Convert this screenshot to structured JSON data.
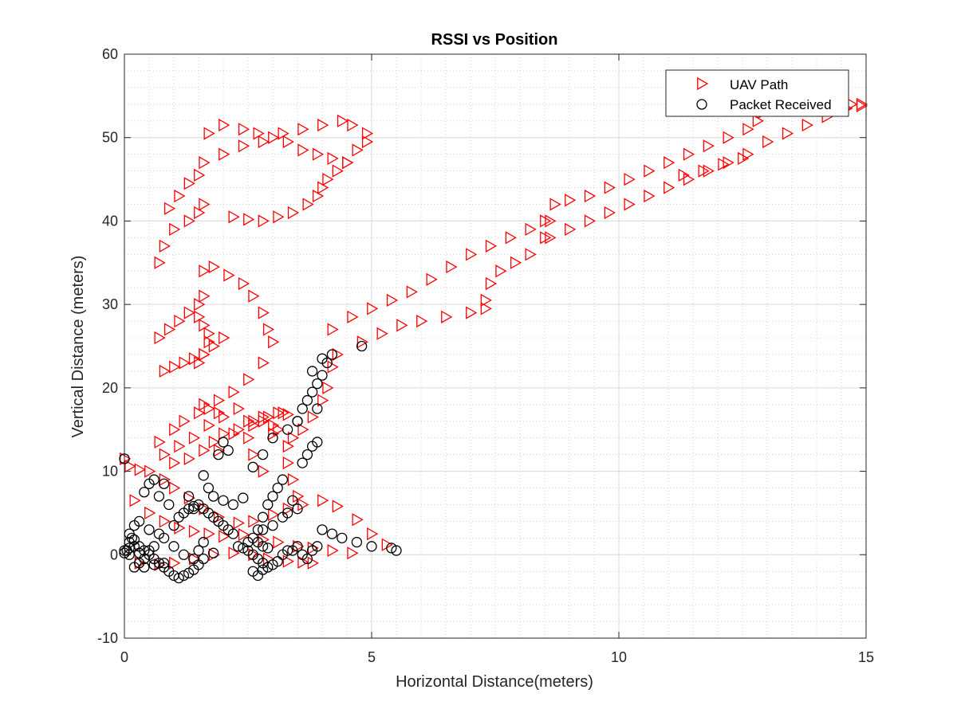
{
  "chart_data": {
    "type": "scatter",
    "title": "RSSI vs Position",
    "xlabel": "Horizontal Distance(meters)",
    "ylabel": "Vertical Distance (meters)",
    "xlim": [
      0,
      15
    ],
    "ylim": [
      -10,
      60
    ],
    "xticks": [
      0,
      5,
      10,
      15
    ],
    "yticks": [
      -10,
      0,
      10,
      20,
      30,
      40,
      50,
      60
    ],
    "xtick_labels": [
      "0",
      "5",
      "10",
      "15"
    ],
    "ytick_labels": [
      "-10",
      "0",
      "10",
      "20",
      "30",
      "40",
      "50",
      "60"
    ],
    "grid": true,
    "minor_grid": true,
    "legend_position": "top-right",
    "series": [
      {
        "name": "UAV Path",
        "marker": "triangle-right",
        "color": "#ff0000",
        "x": [
          0.0,
          0.1,
          0.3,
          0.5,
          0.8,
          1.0,
          1.3,
          1.6,
          1.9,
          2.3,
          2.6,
          3.0,
          3.3,
          3.6,
          4.0,
          4.3,
          4.7,
          5.0,
          5.3,
          0.2,
          0.5,
          0.8,
          1.1,
          1.4,
          1.7,
          2.0,
          2.4,
          2.8,
          3.1,
          3.5,
          3.8,
          4.2,
          4.6,
          0.3,
          0.7,
          1.0,
          1.4,
          1.8,
          2.2,
          2.6,
          2.9,
          3.3,
          3.6,
          3.8,
          3.5,
          3.4,
          3.3,
          3.3,
          3.4,
          3.6,
          3.8,
          4.0,
          4.1,
          4.2,
          4.3,
          2.8,
          2.6,
          2.5,
          2.6,
          2.8,
          3.0,
          3.1,
          3.0,
          1.9,
          2.2,
          2.5,
          2.8,
          3.1,
          3.3,
          0.7,
          1.0,
          1.2,
          1.5,
          1.7,
          1.9,
          1.0,
          1.3,
          1.6,
          1.8,
          2.0,
          2.3,
          2.6,
          2.9,
          3.2,
          0.8,
          1.1,
          1.4,
          1.7,
          2.0,
          2.3,
          1.6,
          1.9,
          2.2,
          2.5,
          2.8,
          3.0,
          2.9,
          2.8,
          2.6,
          2.4,
          2.1,
          1.8,
          1.6,
          1.5,
          1.6,
          1.7,
          1.7,
          1.6,
          1.5,
          0.8,
          1.0,
          1.2,
          1.4,
          1.6,
          1.8,
          2.0,
          0.7,
          0.9,
          1.1,
          1.3,
          1.5,
          1.6,
          0.7,
          0.8,
          1.0,
          1.3,
          1.5,
          1.6,
          0.9,
          1.1,
          1.3,
          1.5,
          1.6,
          2.0,
          2.4,
          2.8,
          3.2,
          3.6,
          4.0,
          4.4,
          4.6,
          4.9,
          4.9,
          4.7,
          4.5,
          4.3,
          4.1,
          4.0,
          3.9,
          3.7,
          3.4,
          3.1,
          2.8,
          2.5,
          2.2,
          4.5,
          4.2,
          3.9,
          3.6,
          3.3,
          3.0,
          2.7,
          2.4,
          2.0,
          1.7,
          4.2,
          4.6,
          5.0,
          5.4,
          5.8,
          6.2,
          6.6,
          7.0,
          7.4,
          7.8,
          8.2,
          8.5,
          4.8,
          5.2,
          5.6,
          6.0,
          6.5,
          7.0,
          7.3,
          7.3,
          7.4,
          7.6,
          7.9,
          8.2,
          8.5,
          8.6,
          8.7,
          9.0,
          9.4,
          9.8,
          10.2,
          10.6,
          11.0,
          11.4,
          11.8,
          12.2,
          12.6,
          8.6,
          9.0,
          9.4,
          9.8,
          10.2,
          10.6,
          11.0,
          11.4,
          11.8,
          12.2,
          12.6,
          13.0,
          13.4,
          13.8,
          14.2,
          14.6,
          14.9,
          12.8,
          12.9,
          13.2,
          13.5,
          13.8,
          14.1,
          14.4,
          14.7,
          14.9,
          11.3,
          11.7,
          12.1,
          12.5
        ],
        "y": [
          11.5,
          10.6,
          10.2,
          10.0,
          9.0,
          8.0,
          6.8,
          5.5,
          4.5,
          3.8,
          4.0,
          4.8,
          5.5,
          6.0,
          6.5,
          5.8,
          4.2,
          2.5,
          1.2,
          6.5,
          5.0,
          4.0,
          3.2,
          2.8,
          2.5,
          2.2,
          2.4,
          1.8,
          1.5,
          1.0,
          0.8,
          0.5,
          0.2,
          -1.0,
          -1.2,
          -1.0,
          -0.5,
          0.0,
          0.2,
          0.0,
          -0.5,
          -0.8,
          -0.9,
          -1.0,
          7.0,
          9.0,
          11.0,
          13.0,
          14.0,
          15.0,
          16.5,
          18.5,
          20.0,
          22.5,
          24.0,
          10.0,
          12.0,
          14.0,
          15.5,
          16.0,
          15.5,
          15.0,
          14.5,
          12.5,
          14.5,
          16.0,
          16.5,
          17.0,
          16.8,
          13.5,
          15.0,
          16.0,
          17.0,
          17.5,
          17.0,
          11.0,
          11.5,
          12.5,
          13.5,
          14.5,
          15.0,
          16.0,
          16.5,
          17.0,
          12.0,
          13.0,
          14.0,
          15.5,
          16.5,
          17.5,
          18.0,
          18.5,
          19.5,
          21.0,
          23.0,
          25.5,
          27.0,
          29.0,
          31.0,
          32.5,
          33.5,
          34.5,
          34.0,
          23.0,
          24.0,
          25.5,
          26.5,
          27.5,
          28.5,
          22.0,
          22.5,
          23.0,
          23.5,
          24.0,
          25.0,
          26.0,
          26.0,
          27.0,
          28.0,
          29.0,
          30.0,
          31.0,
          35.0,
          37.0,
          39.0,
          40.0,
          41.0,
          42.0,
          41.5,
          43.0,
          44.5,
          45.5,
          47.0,
          48.0,
          49.0,
          49.5,
          50.5,
          51.0,
          51.5,
          52.0,
          51.5,
          50.5,
          49.5,
          48.5,
          47.0,
          46.0,
          45.0,
          44.0,
          43.0,
          42.0,
          41.0,
          40.5,
          40.0,
          40.2,
          40.5,
          47.0,
          47.5,
          48.0,
          48.5,
          49.5,
          50.0,
          50.5,
          51.0,
          51.5,
          50.5,
          27.0,
          28.5,
          29.5,
          30.5,
          31.5,
          33.0,
          34.5,
          36.0,
          37.0,
          38.0,
          39.0,
          40.0,
          25.5,
          26.5,
          27.5,
          28.0,
          28.5,
          29.0,
          29.5,
          30.5,
          32.5,
          34.0,
          35.0,
          36.0,
          38.0,
          40.0,
          42.0,
          42.5,
          43.0,
          44.0,
          45.0,
          46.0,
          47.0,
          48.0,
          49.0,
          50.0,
          51.0,
          38.0,
          39.0,
          40.0,
          41.0,
          42.0,
          43.0,
          44.0,
          45.0,
          46.0,
          47.0,
          48.0,
          49.5,
          50.5,
          51.5,
          52.5,
          53.5,
          54.0,
          52.0,
          53.0,
          53.5,
          54.0,
          54.5,
          54.5,
          54.5,
          54.0,
          53.8,
          45.5,
          46.0,
          46.8,
          47.5
        ]
      },
      {
        "name": "Packet Received",
        "marker": "circle",
        "color": "#000000",
        "x": [
          0.0,
          0.1,
          0.2,
          0.3,
          0.4,
          0.5,
          0.6,
          0.1,
          0.2,
          0.3,
          0.5,
          0.7,
          0.8,
          1.0,
          0.2,
          0.3,
          0.4,
          0.6,
          0.8,
          0.1,
          0.0,
          0.05,
          0.1,
          0.15,
          0.2,
          0.3,
          0.4,
          0.5,
          0.6,
          0.7,
          0.8,
          0.9,
          1.0,
          1.1,
          1.2,
          1.3,
          1.4,
          1.5,
          1.6,
          1.8,
          1.0,
          1.1,
          1.2,
          1.3,
          1.4,
          1.5,
          1.6,
          1.7,
          1.8,
          1.9,
          2.0,
          2.1,
          2.2,
          2.3,
          2.4,
          2.5,
          2.6,
          2.7,
          2.8,
          2.9,
          3.0,
          3.1,
          3.2,
          3.3,
          2.5,
          2.6,
          2.7,
          2.8,
          2.9,
          2.6,
          2.7,
          2.8,
          3.4,
          3.5,
          3.6,
          3.7,
          3.8,
          3.9,
          4.0,
          4.2,
          4.4,
          4.7,
          5.0,
          5.4,
          5.5,
          2.7,
          2.8,
          2.9,
          3.0,
          3.1,
          3.2,
          2.6,
          2.8,
          3.0,
          3.3,
          3.5,
          1.6,
          1.7,
          1.8,
          2.0,
          2.2,
          2.4,
          1.3,
          1.4,
          0.5,
          0.6,
          0.8,
          0.4,
          0.7,
          0.9,
          1.2,
          1.4,
          1.5,
          1.6,
          3.6,
          3.7,
          3.8,
          3.9,
          3.5,
          3.6,
          3.7,
          3.8,
          3.9,
          4.0,
          4.1,
          4.2,
          3.8,
          3.9,
          4.0,
          4.8,
          3.4,
          3.5,
          3.3,
          3.2,
          3.0,
          2.8,
          0.0,
          2.1,
          2.0,
          1.9
        ],
        "y": [
          0.5,
          0.8,
          1.0,
          0.2,
          -0.5,
          0.5,
          1.0,
          2.5,
          3.5,
          4.0,
          3.0,
          2.5,
          2.0,
          1.0,
          -1.5,
          -1.0,
          -1.5,
          -1.2,
          -1.0,
          0.0,
          0.2,
          0.5,
          1.5,
          2.0,
          1.8,
          1.0,
          0.5,
          0.0,
          -0.5,
          -1.0,
          -1.5,
          -2.0,
          -2.5,
          -2.8,
          -2.5,
          -2.2,
          -1.8,
          -1.2,
          -0.5,
          0.2,
          3.5,
          4.5,
          5.0,
          5.5,
          5.8,
          6.0,
          5.5,
          5.0,
          4.5,
          4.0,
          3.5,
          3.0,
          2.5,
          1.0,
          0.8,
          0.5,
          0.0,
          -0.5,
          -1.0,
          -1.5,
          -1.2,
          -0.8,
          0.0,
          0.5,
          1.5,
          2.0,
          1.5,
          1.0,
          0.8,
          -2.0,
          -2.5,
          -1.8,
          0.5,
          1.0,
          0.0,
          -0.5,
          0.5,
          1.0,
          3.0,
          2.5,
          2.0,
          1.5,
          1.0,
          0.8,
          0.5,
          3.0,
          4.5,
          6.0,
          7.0,
          8.0,
          9.0,
          10.5,
          12.0,
          14.0,
          15.0,
          16.0,
          9.5,
          8.0,
          7.0,
          6.5,
          6.0,
          6.8,
          7.0,
          5.5,
          8.5,
          9.0,
          8.5,
          7.5,
          7.0,
          6.0,
          0.0,
          -0.5,
          0.5,
          1.5,
          11.0,
          12.0,
          13.0,
          13.5,
          16.0,
          17.5,
          18.5,
          19.5,
          20.5,
          21.5,
          23.0,
          24.0,
          22.0,
          17.5,
          23.5,
          25.0,
          6.5,
          5.5,
          5.0,
          4.5,
          3.5,
          3.0,
          11.5,
          12.5,
          13.5,
          12.0
        ]
      }
    ]
  }
}
